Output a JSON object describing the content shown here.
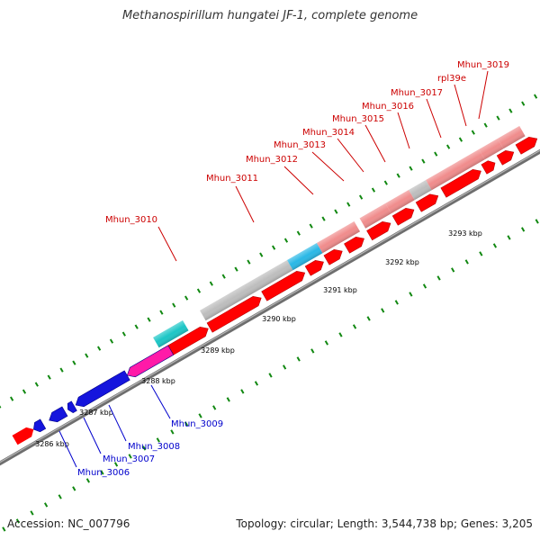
{
  "title": "Methanospirillum hungatei JF-1, complete genome",
  "footer": {
    "accession": "Accession: NC_007796",
    "stats": "Topology: circular; Length: 3,544,738 bp; Genes: 3,205"
  },
  "colors": {
    "backbone": "#8c8c8c",
    "tick": "#118811",
    "label_forward": "#cc0000",
    "label_reverse": "#0000cc"
  },
  "scale_labels": [
    "3286 kbp",
    "3287 kbp",
    "3288 kbp",
    "3289 kbp",
    "3290 kbp",
    "3291 kbp",
    "3292 kbp",
    "3293 kbp"
  ],
  "genes": [
    {
      "label": "Mhun_3006",
      "strand": "-",
      "color": "#1515dd"
    },
    {
      "label": "Mhun_3007",
      "strand": "-",
      "color": "#1515dd"
    },
    {
      "label": "Mhun_3008",
      "strand": "-",
      "color": "#1515dd"
    },
    {
      "label": "Mhun_3009",
      "strand": "-",
      "color": "#ff1aa8"
    },
    {
      "label": "Mhun_3010",
      "strand": "+",
      "color": "#1cc6c6"
    },
    {
      "label": "Mhun_3011",
      "strand": "+",
      "color": "#bdbdbd"
    },
    {
      "label": "Mhun_3012",
      "strand": "+",
      "color": "#2ab8e6"
    },
    {
      "label": "Mhun_3013",
      "strand": "+",
      "color": "#f08c8c"
    },
    {
      "label": "Mhun_3014",
      "strand": "+",
      "color": "#f08c8c"
    },
    {
      "label": "Mhun_3015",
      "strand": "+",
      "color": "#f08c8c"
    },
    {
      "label": "Mhun_3016",
      "strand": "+",
      "color": "#bdbdbd"
    },
    {
      "label": "Mhun_3017",
      "strand": "+",
      "color": "#f08c8c"
    },
    {
      "label": "rpl39e",
      "strand": "+",
      "color": "#f08c8c"
    },
    {
      "label": "Mhun_3019",
      "strand": "+",
      "color": "#f08c8c"
    }
  ]
}
